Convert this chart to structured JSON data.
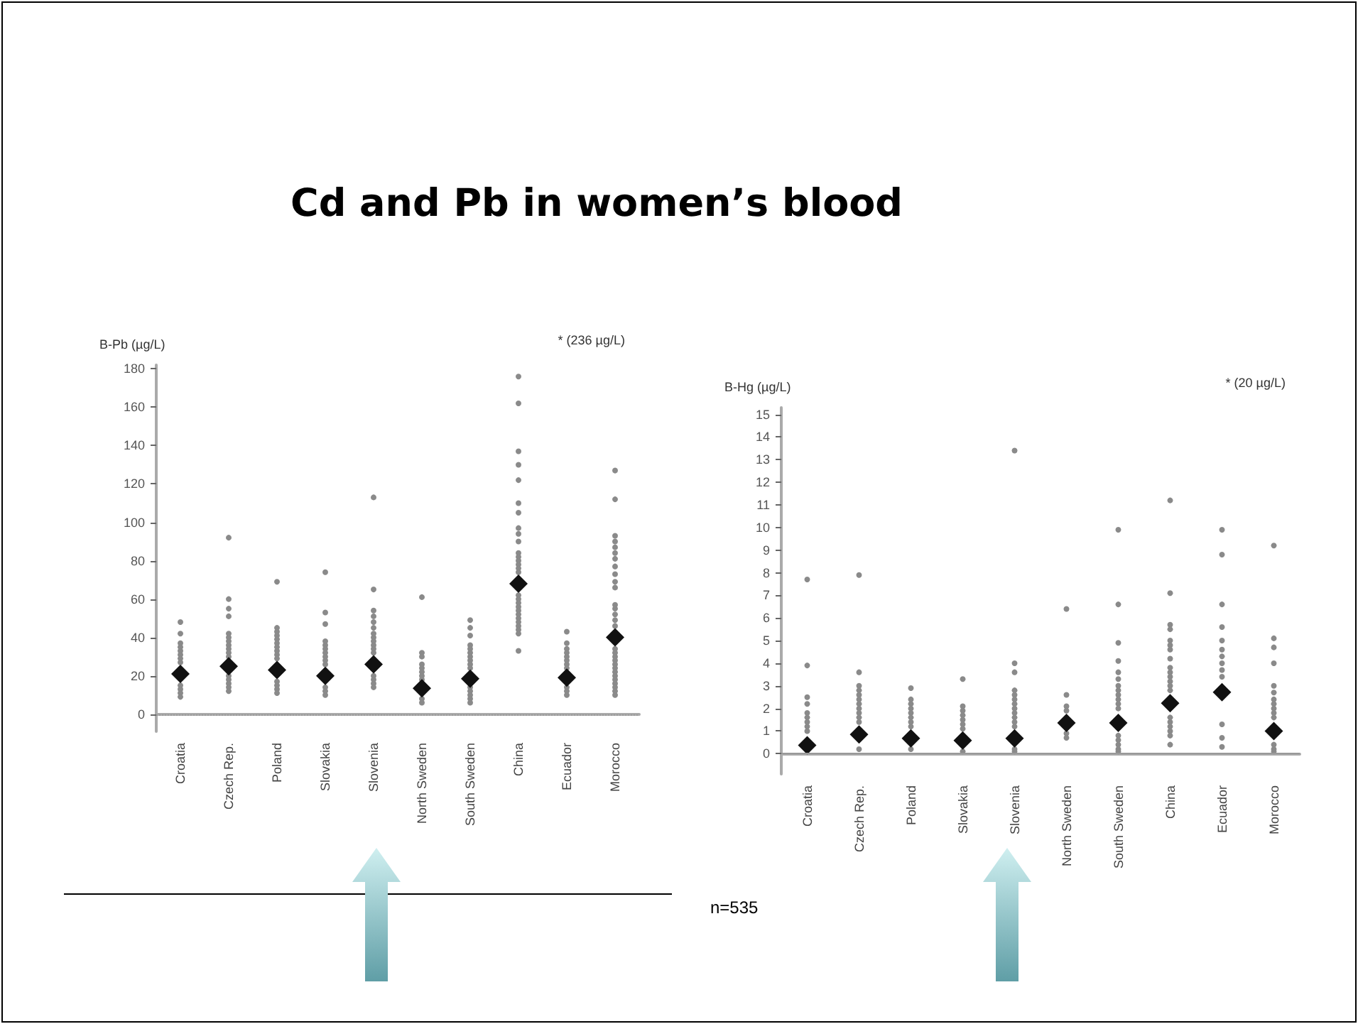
{
  "chart_data": [
    {
      "type": "scatter",
      "title": "Cd and Pb in women’s blood",
      "ylabel": "B-Pb (µg/L)",
      "annotations": [
        "* (236 µg/L)"
      ],
      "categories": [
        "Croatia",
        "Czech Rep.",
        "Poland",
        "Slovakia",
        "Slovenia",
        "North Sweden",
        "South Sweden",
        "China",
        "Ecuador",
        "Morocco"
      ],
      "ylim": [
        -9,
        182
      ],
      "yticks": [
        0,
        20,
        40,
        60,
        80,
        100,
        120,
        140,
        160,
        180
      ],
      "grid": false,
      "ref_lines": [
        {
          "axis": "y",
          "value": 0,
          "line_style": "dotted",
          "color": "#999999"
        }
      ],
      "series": [
        {
          "color": "#8a8a8a",
          "marker": "circle",
          "x": [
            "Croatia",
            "Croatia",
            "Croatia",
            "Croatia",
            "Croatia",
            "Croatia",
            "Croatia",
            "Croatia",
            "Croatia",
            "Croatia",
            "Croatia",
            "Croatia",
            "Czech Rep.",
            "Czech Rep.",
            "Czech Rep.",
            "Czech Rep.",
            "Czech Rep.",
            "Czech Rep.",
            "Czech Rep.",
            "Czech Rep.",
            "Czech Rep.",
            "Czech Rep.",
            "Czech Rep.",
            "Czech Rep.",
            "Czech Rep.",
            "Czech Rep.",
            "Czech Rep.",
            "Czech Rep.",
            "Poland",
            "Poland",
            "Poland",
            "Poland",
            "Poland",
            "Poland",
            "Poland",
            "Poland",
            "Poland",
            "Poland",
            "Poland",
            "Poland",
            "Poland",
            "Poland",
            "Slovakia",
            "Slovakia",
            "Slovakia",
            "Slovakia",
            "Slovakia",
            "Slovakia",
            "Slovakia",
            "Slovakia",
            "Slovakia",
            "Slovakia",
            "Slovakia",
            "Slovakia",
            "Slovakia",
            "Slovenia",
            "Slovenia",
            "Slovenia",
            "Slovenia",
            "Slovenia",
            "Slovenia",
            "Slovenia",
            "Slovenia",
            "Slovenia",
            "Slovenia",
            "Slovenia",
            "Slovenia",
            "Slovenia",
            "Slovenia",
            "Slovenia",
            "Slovenia",
            "North Sweden",
            "North Sweden",
            "North Sweden",
            "North Sweden",
            "North Sweden",
            "North Sweden",
            "North Sweden",
            "North Sweden",
            "North Sweden",
            "North Sweden",
            "South Sweden",
            "South Sweden",
            "South Sweden",
            "South Sweden",
            "South Sweden",
            "South Sweden",
            "South Sweden",
            "South Sweden",
            "South Sweden",
            "South Sweden",
            "South Sweden",
            "South Sweden",
            "South Sweden",
            "South Sweden",
            "South Sweden",
            "China",
            "China",
            "China",
            "China",
            "China",
            "China",
            "China",
            "China",
            "China",
            "China",
            "China",
            "China",
            "China",
            "China",
            "China",
            "China",
            "China",
            "China",
            "China",
            "China",
            "China",
            "China",
            "China",
            "China",
            "China",
            "China",
            "China",
            "China",
            "Ecuador",
            "Ecuador",
            "Ecuador",
            "Ecuador",
            "Ecuador",
            "Ecuador",
            "Ecuador",
            "Ecuador",
            "Ecuador",
            "Ecuador",
            "Ecuador",
            "Morocco",
            "Morocco",
            "Morocco",
            "Morocco",
            "Morocco",
            "Morocco",
            "Morocco",
            "Morocco",
            "Morocco",
            "Morocco",
            "Morocco",
            "Morocco",
            "Morocco",
            "Morocco",
            "Morocco",
            "Morocco",
            "Morocco",
            "Morocco",
            "Morocco",
            "Morocco",
            "Morocco",
            "Morocco",
            "Morocco",
            "Morocco",
            "Morocco",
            "Morocco",
            "Morocco",
            "Morocco",
            "Morocco"
          ],
          "values": [
            48,
            42,
            37,
            35,
            33,
            31,
            29,
            27,
            15,
            13,
            11,
            9,
            92,
            60,
            55,
            51,
            42,
            40,
            38,
            36,
            34,
            32,
            30,
            20,
            18,
            16,
            14,
            12,
            69,
            45,
            43,
            41,
            39,
            37,
            35,
            33,
            31,
            29,
            17,
            15,
            13,
            11,
            74,
            53,
            47,
            38,
            36,
            34,
            32,
            30,
            28,
            26,
            14,
            12,
            10,
            113,
            65,
            54,
            51,
            48,
            45,
            42,
            40,
            38,
            36,
            34,
            32,
            20,
            18,
            16,
            14,
            61,
            32,
            30,
            26,
            24,
            22,
            20,
            18,
            8,
            6,
            49,
            45,
            41,
            36,
            34,
            32,
            30,
            28,
            26,
            24,
            14,
            12,
            10,
            8,
            6,
            176,
            162,
            137,
            130,
            122,
            110,
            105,
            97,
            94,
            90,
            84,
            82,
            80,
            78,
            76,
            74,
            62,
            60,
            58,
            56,
            54,
            52,
            50,
            48,
            46,
            44,
            42,
            33,
            43,
            37,
            34,
            32,
            30,
            28,
            26,
            24,
            14,
            12,
            10,
            127,
            112,
            93,
            90,
            87,
            84,
            81,
            77,
            73,
            69,
            66,
            57,
            55,
            52,
            49,
            46,
            34,
            32,
            30,
            28,
            26,
            24,
            22,
            20,
            18,
            16,
            14,
            12,
            10
          ]
        },
        {
          "color": "#111111",
          "marker": "diamond",
          "x": [
            "Croatia",
            "Czech Rep.",
            "Poland",
            "Slovakia",
            "Slovenia",
            "North Sweden",
            "South Sweden",
            "China",
            "Ecuador",
            "Morocco"
          ],
          "values": [
            21,
            25,
            23,
            20,
            26,
            13.5,
            18.5,
            68,
            19,
            40
          ]
        }
      ]
    },
    {
      "type": "scatter",
      "ylabel": "B-Hg (µg/L)",
      "annotations": [
        "* (20 µg/L)",
        "n=535"
      ],
      "categories": [
        "Croatia",
        "Czech Rep.",
        "Poland",
        "Slovakia",
        "Slovenia",
        "North Sweden",
        "South Sweden",
        "China",
        "Ecuador",
        "Morocco"
      ],
      "ylim": [
        -0.9,
        15.3
      ],
      "yticks": [
        0,
        1,
        2,
        3,
        4,
        5,
        6,
        7,
        8,
        9,
        10,
        11,
        12,
        13,
        14,
        15
      ],
      "grid": false,
      "ref_lines": [
        {
          "axis": "y",
          "value": 0,
          "line_style": "solid",
          "color": "#999999"
        }
      ],
      "series": [
        {
          "color": "#8a8a8a",
          "marker": "circle",
          "x": [
            "Croatia",
            "Croatia",
            "Croatia",
            "Croatia",
            "Croatia",
            "Croatia",
            "Croatia",
            "Croatia",
            "Croatia",
            "Czech Rep.",
            "Czech Rep.",
            "Czech Rep.",
            "Czech Rep.",
            "Czech Rep.",
            "Czech Rep.",
            "Czech Rep.",
            "Czech Rep.",
            "Czech Rep.",
            "Czech Rep.",
            "Czech Rep.",
            "Czech Rep.",
            "Poland",
            "Poland",
            "Poland",
            "Poland",
            "Poland",
            "Poland",
            "Poland",
            "Poland",
            "Poland",
            "Slovakia",
            "Slovakia",
            "Slovakia",
            "Slovakia",
            "Slovakia",
            "Slovakia",
            "Slovakia",
            "Slovakia",
            "Slovenia",
            "Slovenia",
            "Slovenia",
            "Slovenia",
            "Slovenia",
            "Slovenia",
            "Slovenia",
            "Slovenia",
            "Slovenia",
            "Slovenia",
            "Slovenia",
            "Slovenia",
            "Slovenia",
            "Slovenia",
            "North Sweden",
            "North Sweden",
            "North Sweden",
            "North Sweden",
            "North Sweden",
            "North Sweden",
            "South Sweden",
            "South Sweden",
            "South Sweden",
            "South Sweden",
            "South Sweden",
            "South Sweden",
            "South Sweden",
            "South Sweden",
            "South Sweden",
            "South Sweden",
            "South Sweden",
            "South Sweden",
            "South Sweden",
            "South Sweden",
            "South Sweden",
            "South Sweden",
            "South Sweden",
            "China",
            "China",
            "China",
            "China",
            "China",
            "China",
            "China",
            "China",
            "China",
            "China",
            "China",
            "China",
            "China",
            "China",
            "China",
            "China",
            "China",
            "China",
            "China",
            "China",
            "Ecuador",
            "Ecuador",
            "Ecuador",
            "Ecuador",
            "Ecuador",
            "Ecuador",
            "Ecuador",
            "Ecuador",
            "Ecuador",
            "Ecuador",
            "Ecuador",
            "Ecuador",
            "Ecuador",
            "Morocco",
            "Morocco",
            "Morocco",
            "Morocco",
            "Morocco",
            "Morocco",
            "Morocco",
            "Morocco",
            "Morocco",
            "Morocco",
            "Morocco",
            "Morocco",
            "Morocco",
            "Morocco"
          ],
          "values": [
            7.7,
            3.9,
            2.5,
            2.2,
            1.8,
            1.6,
            1.4,
            1.2,
            1.0,
            7.9,
            3.6,
            3.0,
            2.8,
            2.6,
            2.4,
            2.2,
            2.0,
            1.8,
            1.6,
            1.4,
            0.2,
            2.9,
            2.4,
            2.2,
            2.0,
            1.8,
            1.6,
            1.4,
            1.2,
            0.2,
            3.3,
            2.1,
            1.9,
            1.7,
            1.5,
            1.3,
            1.1,
            0.1,
            13.4,
            4.0,
            3.6,
            2.8,
            2.6,
            2.4,
            2.2,
            2.0,
            1.8,
            1.6,
            1.4,
            1.2,
            0.2,
            0.1,
            6.4,
            2.6,
            2.1,
            1.9,
            0.9,
            0.7,
            9.9,
            6.6,
            4.9,
            4.1,
            3.6,
            3.3,
            3.0,
            2.8,
            2.6,
            2.4,
            2.2,
            2.0,
            0.8,
            0.6,
            0.4,
            0.2,
            0.1,
            11.2,
            7.1,
            5.7,
            5.5,
            5.0,
            4.8,
            4.6,
            4.2,
            3.8,
            3.6,
            3.4,
            3.2,
            3.0,
            2.8,
            1.6,
            1.4,
            1.2,
            1.0,
            0.8,
            0.4,
            9.9,
            8.8,
            6.6,
            5.6,
            5.0,
            4.6,
            4.3,
            4.0,
            3.7,
            3.4,
            1.3,
            0.7,
            0.3,
            9.2,
            5.1,
            4.7,
            4.0,
            3.0,
            2.7,
            2.4,
            2.2,
            2.0,
            1.8,
            1.6,
            0.4,
            0.2,
            0.1
          ]
        },
        {
          "color": "#111111",
          "marker": "diamond",
          "x": [
            "Croatia",
            "Czech Rep.",
            "Poland",
            "Slovakia",
            "Slovenia",
            "North Sweden",
            "South Sweden",
            "China",
            "Ecuador",
            "Morocco"
          ],
          "values": [
            0.37,
            0.85,
            0.68,
            0.58,
            0.68,
            1.36,
            1.36,
            2.23,
            2.72,
            1.0
          ]
        }
      ]
    }
  ]
}
